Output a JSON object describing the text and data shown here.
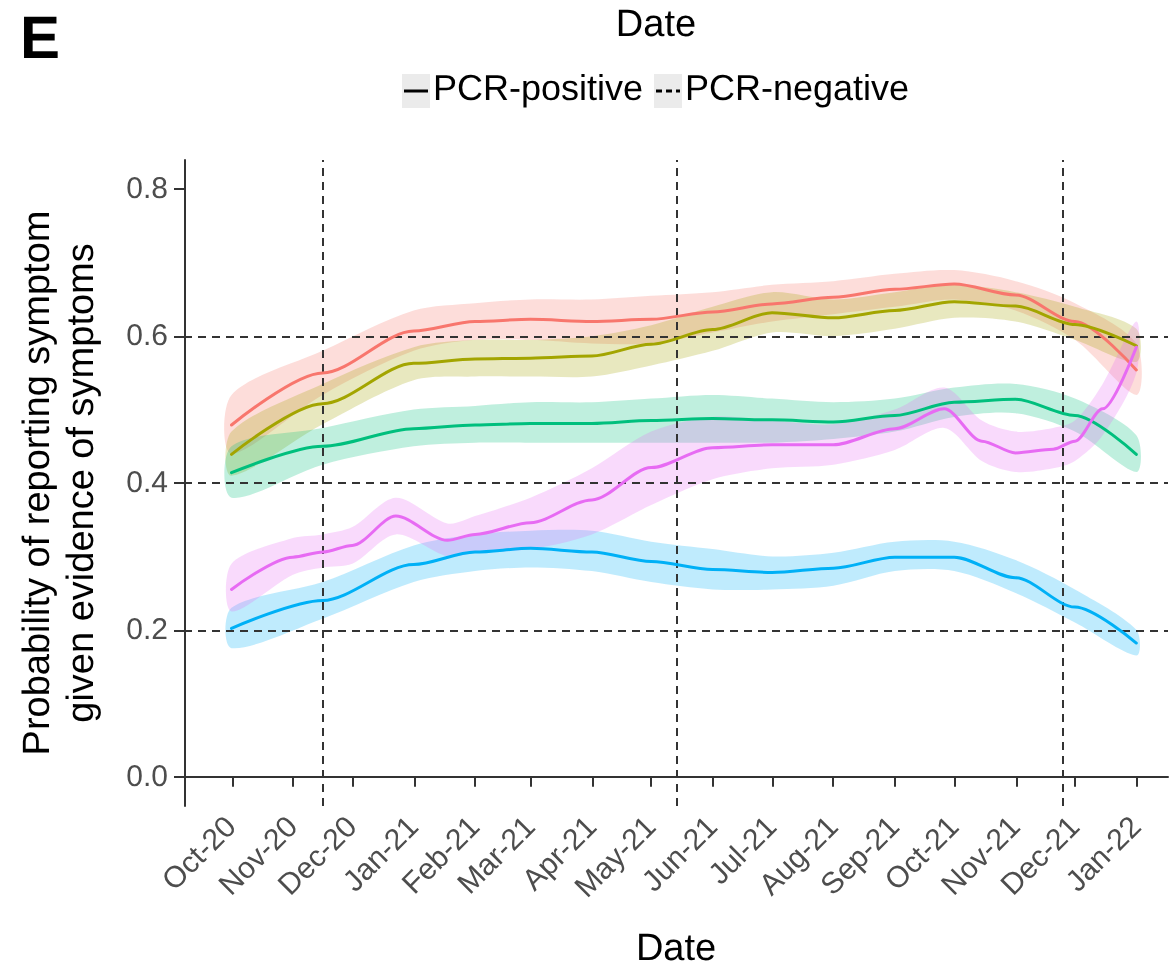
{
  "chart_data": {
    "type": "line",
    "ylabel": "Probability of reporting symptom\ngiven evidence of symptoms",
    "xlabel": "Date",
    "annotations": [
      "E",
      "Date",
      "PCR-positive",
      "PCR-negative"
    ],
    "x": [
      "2020-10-01",
      "2020-11-16",
      "2021-01-01",
      "2021-02-01",
      "2021-03-01",
      "2021-04-01",
      "2021-05-01",
      "2021-06-01",
      "2021-07-01",
      "2021-08-01",
      "2021-09-01",
      "2021-10-01",
      "2021-11-01",
      "2021-12-01",
      "2022-01-01"
    ],
    "series": [
      {
        "color": "#f8766d",
        "values": [
          0.479,
          0.55,
          0.607,
          0.62,
          0.623,
          0.62,
          0.623,
          0.633,
          0.644,
          0.653,
          0.664,
          0.671,
          0.656,
          0.62,
          0.554
        ],
        "lower": [
          0.44,
          0.52,
          0.58,
          0.595,
          0.595,
          0.59,
          0.59,
          0.605,
          0.62,
          0.63,
          0.64,
          0.65,
          0.635,
          0.595,
          0.52
        ],
        "upper": [
          0.52,
          0.58,
          0.635,
          0.645,
          0.65,
          0.65,
          0.655,
          0.66,
          0.67,
          0.675,
          0.685,
          0.69,
          0.675,
          0.645,
          0.59
        ]
      },
      {
        "color": "#a3a500",
        "values": [
          0.439,
          0.508,
          0.563,
          0.569,
          0.57,
          0.573,
          0.589,
          0.609,
          0.632,
          0.625,
          0.635,
          0.647,
          0.641,
          0.616,
          0.587
        ],
        "lower": [
          0.41,
          0.48,
          0.54,
          0.545,
          0.545,
          0.545,
          0.56,
          0.58,
          0.605,
          0.6,
          0.61,
          0.625,
          0.62,
          0.595,
          0.565
        ],
        "upper": [
          0.47,
          0.535,
          0.585,
          0.595,
          0.595,
          0.6,
          0.615,
          0.64,
          0.66,
          0.65,
          0.66,
          0.67,
          0.66,
          0.64,
          0.61
        ]
      },
      {
        "color": "#00bf7d",
        "values": [
          0.414,
          0.45,
          0.474,
          0.479,
          0.481,
          0.481,
          0.485,
          0.488,
          0.486,
          0.483,
          0.492,
          0.51,
          0.514,
          0.492,
          0.439
        ],
        "lower": [
          0.38,
          0.425,
          0.45,
          0.455,
          0.455,
          0.455,
          0.455,
          0.455,
          0.455,
          0.46,
          0.47,
          0.49,
          0.495,
          0.47,
          0.415
        ],
        "upper": [
          0.45,
          0.475,
          0.5,
          0.505,
          0.51,
          0.51,
          0.515,
          0.52,
          0.515,
          0.51,
          0.515,
          0.53,
          0.535,
          0.515,
          0.465
        ]
      },
      {
        "color": "#00b0f6",
        "values": [
          0.202,
          0.24,
          0.289,
          0.306,
          0.311,
          0.306,
          0.293,
          0.282,
          0.278,
          0.284,
          0.299,
          0.299,
          0.271,
          0.231,
          0.182
        ],
        "lower": [
          0.175,
          0.215,
          0.265,
          0.28,
          0.285,
          0.28,
          0.265,
          0.255,
          0.255,
          0.26,
          0.28,
          0.28,
          0.25,
          0.21,
          0.165
        ],
        "upper": [
          0.23,
          0.265,
          0.315,
          0.33,
          0.335,
          0.335,
          0.32,
          0.31,
          0.3,
          0.305,
          0.32,
          0.32,
          0.295,
          0.255,
          0.2
        ]
      },
      {
        "color": "#e76bf3",
        "x": [
          "2020-10-01",
          "2020-11-01",
          "2020-11-16",
          "2020-12-01",
          "2020-12-23",
          "2021-01-18",
          "2021-02-01",
          "2021-03-01",
          "2021-04-01",
          "2021-05-01",
          "2021-06-01",
          "2021-07-01",
          "2021-08-01",
          "2021-09-01",
          "2021-09-26",
          "2021-10-15",
          "2021-11-01",
          "2021-11-20",
          "2021-12-01",
          "2021-12-15",
          "2022-01-01"
        ],
        "values": [
          0.255,
          0.299,
          0.306,
          0.315,
          0.355,
          0.322,
          0.33,
          0.346,
          0.377,
          0.421,
          0.448,
          0.452,
          0.452,
          0.474,
          0.501,
          0.457,
          0.441,
          0.446,
          0.457,
          0.501,
          0.585
        ],
        "lower": [
          0.225,
          0.275,
          0.285,
          0.29,
          0.33,
          0.3,
          0.305,
          0.31,
          0.33,
          0.37,
          0.405,
          0.42,
          0.425,
          0.445,
          0.475,
          0.43,
          0.415,
          0.42,
          0.43,
          0.465,
          0.55
        ],
        "upper": [
          0.29,
          0.325,
          0.33,
          0.34,
          0.38,
          0.345,
          0.355,
          0.38,
          0.42,
          0.47,
          0.49,
          0.485,
          0.48,
          0.5,
          0.53,
          0.485,
          0.47,
          0.475,
          0.485,
          0.535,
          0.62
        ]
      }
    ],
    "xlim": [
      "2020-09-07",
      "2022-01-17"
    ],
    "xticks": [
      {
        "value": "2020-10-01",
        "label": "Oct-20"
      },
      {
        "value": "2020-11-01",
        "label": "Nov-20"
      },
      {
        "value": "2020-12-01",
        "label": "Dec-20"
      },
      {
        "value": "2021-01-01",
        "label": "Jan-21"
      },
      {
        "value": "2021-02-01",
        "label": "Feb-21"
      },
      {
        "value": "2021-03-01",
        "label": "Mar-21"
      },
      {
        "value": "2021-04-01",
        "label": "Apr-21"
      },
      {
        "value": "2021-05-01",
        "label": "May-21"
      },
      {
        "value": "2021-06-01",
        "label": "Jun-21"
      },
      {
        "value": "2021-07-01",
        "label": "Jul-21"
      },
      {
        "value": "2021-08-01",
        "label": "Aug-21"
      },
      {
        "value": "2021-09-01",
        "label": "Sep-21"
      },
      {
        "value": "2021-10-01",
        "label": "Oct-21"
      },
      {
        "value": "2021-11-01",
        "label": "Nov-21"
      },
      {
        "value": "2021-12-01",
        "label": "Dec-21"
      },
      {
        "value": "2022-01-01",
        "label": "Jan-22"
      }
    ],
    "ylim": [
      -0.04,
      0.84
    ],
    "yticks": [
      {
        "value": 0,
        "label": "0.0"
      },
      {
        "value": 0.2,
        "label": "0.2"
      },
      {
        "value": 0.4,
        "label": "0.4"
      },
      {
        "value": 0.6,
        "label": "0.6"
      },
      {
        "value": 0.8,
        "label": "0.8"
      }
    ],
    "ref_lines": [
      {
        "axis": "y",
        "value": 0.2,
        "line_style": "dashed",
        "color": "#333333"
      },
      {
        "axis": "y",
        "value": 0.4,
        "line_style": "dashed",
        "color": "#333333"
      },
      {
        "axis": "y",
        "value": 0.6,
        "line_style": "dashed",
        "color": "#333333"
      },
      {
        "axis": "x",
        "value": "2020-11-16",
        "line_style": "dashed",
        "color": "#333333"
      },
      {
        "axis": "x",
        "value": "2021-05-14",
        "line_style": "dashed",
        "color": "#333333"
      },
      {
        "axis": "x",
        "value": "2021-11-25",
        "line_style": "dashed",
        "color": "#333333"
      }
    ],
    "line_style": "solid"
  }
}
